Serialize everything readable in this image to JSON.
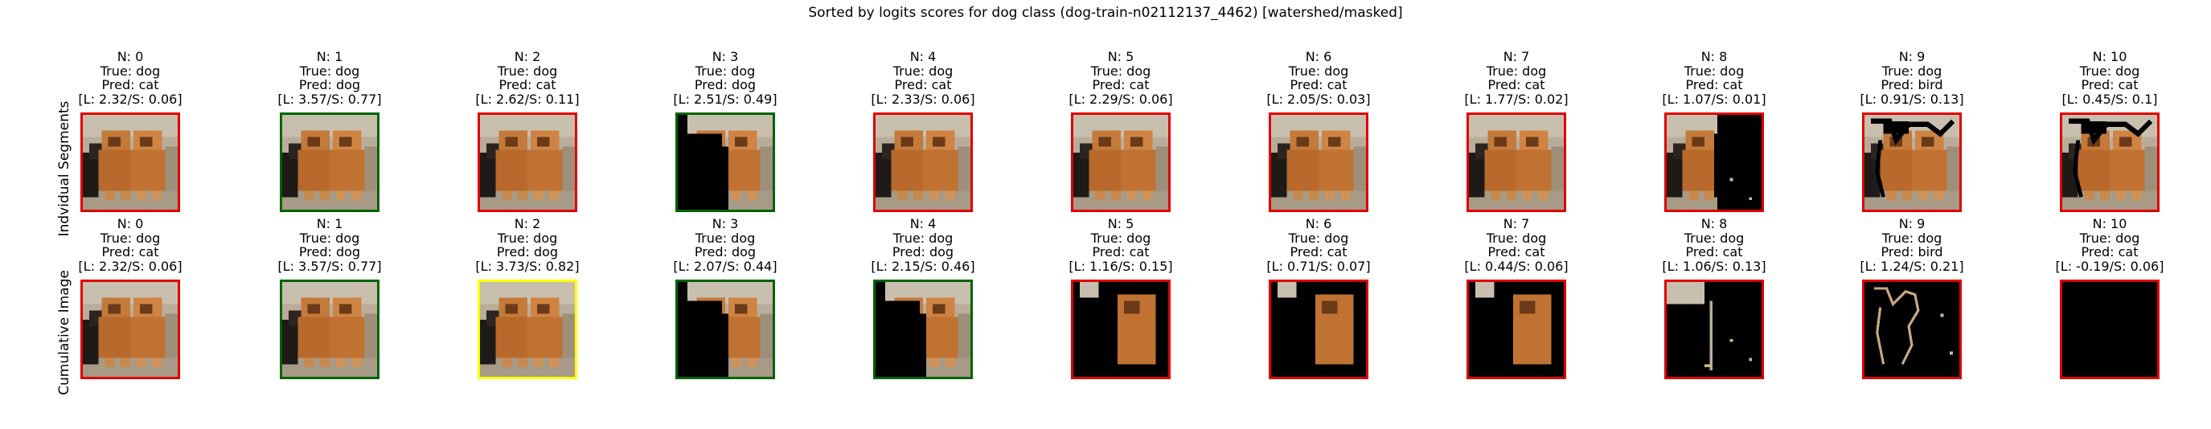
{
  "title": "Sorted by logits scores for dog class (dog-train-n02112137_4462) [watershed/masked]",
  "row_labels": [
    "Indvidual Segments",
    "Cumulative Image"
  ],
  "colors": {
    "red": "#e00000",
    "green": "#006400",
    "yellow": "#ffff00"
  },
  "rows": [
    [
      {
        "n": "N: 0",
        "true": "True: dog",
        "pred": "Pred: cat",
        "score": "[L: 2.32/S: 0.06]",
        "border": "red",
        "mask": "full"
      },
      {
        "n": "N: 1",
        "true": "True: dog",
        "pred": "Pred: dog",
        "score": "[L: 3.57/S: 0.77]",
        "border": "green",
        "mask": "full"
      },
      {
        "n": "N: 2",
        "true": "True: dog",
        "pred": "Pred: cat",
        "score": "[L: 2.62/S: 0.11]",
        "border": "red",
        "mask": "full"
      },
      {
        "n": "N: 3",
        "true": "True: dog",
        "pred": "Pred: dog",
        "score": "[L: 2.51/S: 0.49]",
        "border": "green",
        "mask": "left-black"
      },
      {
        "n": "N: 4",
        "true": "True: dog",
        "pred": "Pred: cat",
        "score": "[L: 2.33/S: 0.06]",
        "border": "red",
        "mask": "full"
      },
      {
        "n": "N: 5",
        "true": "True: dog",
        "pred": "Pred: cat",
        "score": "[L: 2.29/S: 0.06]",
        "border": "red",
        "mask": "full"
      },
      {
        "n": "N: 6",
        "true": "True: dog",
        "pred": "Pred: cat",
        "score": "[L: 2.05/S: 0.03]",
        "border": "red",
        "mask": "full"
      },
      {
        "n": "N: 7",
        "true": "True: dog",
        "pred": "Pred: cat",
        "score": "[L: 1.77/S: 0.02]",
        "border": "red",
        "mask": "full"
      },
      {
        "n": "N: 8",
        "true": "True: dog",
        "pred": "Pred: cat",
        "score": "[L: 1.07/S: 0.01]",
        "border": "red",
        "mask": "right-black"
      },
      {
        "n": "N: 9",
        "true": "True: dog",
        "pred": "Pred: bird",
        "score": "[L: 0.91/S: 0.13]",
        "border": "red",
        "mask": "lines-black"
      },
      {
        "n": "N: 10",
        "true": "True: dog",
        "pred": "Pred: cat",
        "score": "[L: 0.45/S: 0.1]",
        "border": "red",
        "mask": "lines-black"
      }
    ],
    [
      {
        "n": "N: 0",
        "true": "True: dog",
        "pred": "Pred: cat",
        "score": "[L: 2.32/S: 0.06]",
        "border": "red",
        "mask": "full"
      },
      {
        "n": "N: 1",
        "true": "True: dog",
        "pred": "Pred: dog",
        "score": "[L: 3.57/S: 0.77]",
        "border": "green",
        "mask": "full"
      },
      {
        "n": "N: 2",
        "true": "True: dog",
        "pred": "Pred: dog",
        "score": "[L: 3.73/S: 0.82]",
        "border": "yellow",
        "mask": "full"
      },
      {
        "n": "N: 3",
        "true": "True: dog",
        "pred": "Pred: dog",
        "score": "[L: 2.07/S: 0.44]",
        "border": "green",
        "mask": "left-black"
      },
      {
        "n": "N: 4",
        "true": "True: dog",
        "pred": "Pred: dog",
        "score": "[L: 2.15/S: 0.46]",
        "border": "green",
        "mask": "left-black"
      },
      {
        "n": "N: 5",
        "true": "True: dog",
        "pred": "Pred: cat",
        "score": "[L: 1.16/S: 0.15]",
        "border": "red",
        "mask": "mostly-black"
      },
      {
        "n": "N: 6",
        "true": "True: dog",
        "pred": "Pred: cat",
        "score": "[L: 0.71/S: 0.07]",
        "border": "red",
        "mask": "mostly-black"
      },
      {
        "n": "N: 7",
        "true": "True: dog",
        "pred": "Pred: cat",
        "score": "[L: 0.44/S: 0.06]",
        "border": "red",
        "mask": "mostly-black"
      },
      {
        "n": "N: 8",
        "true": "True: dog",
        "pred": "Pred: cat",
        "score": "[L: 1.06/S: 0.13]",
        "border": "red",
        "mask": "edges-only"
      },
      {
        "n": "N: 9",
        "true": "True: dog",
        "pred": "Pred: bird",
        "score": "[L: 1.24/S: 0.21]",
        "border": "red",
        "mask": "lines-only"
      },
      {
        "n": "N: 10",
        "true": "True: dog",
        "pred": "Pred: cat",
        "score": "[L: -0.19/S: 0.06]",
        "border": "red",
        "mask": "empty"
      }
    ]
  ]
}
